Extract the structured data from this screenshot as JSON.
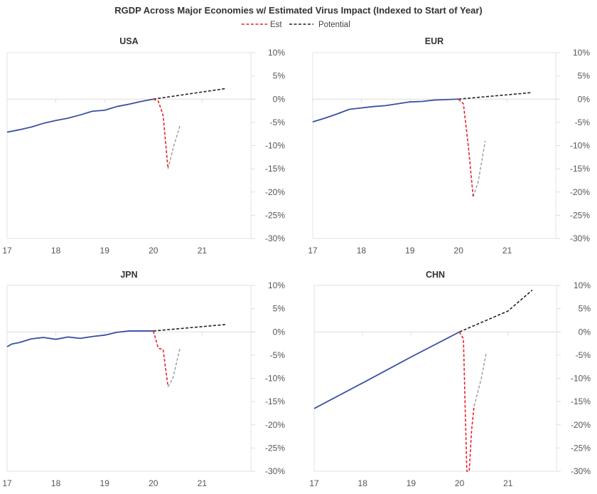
{
  "chart_data": {
    "title": "RGDP Across Major Economies w/ Estimated Virus Impact (Indexed to Start of Year)",
    "legend": [
      {
        "name": "Est",
        "color": "#e8212a",
        "dash": true
      },
      {
        "name": "Potential",
        "color": "#222222",
        "dash": true
      }
    ],
    "legend_placement": "top-center",
    "colors": {
      "actual": "#3a4fa3",
      "est": "#e8212a",
      "recovery": "#999999",
      "potential": "#222222"
    },
    "xlim": [
      17,
      22
    ],
    "ylim": [
      -30,
      10
    ],
    "x_ticks": [
      "17",
      "18",
      "19",
      "20",
      "21"
    ],
    "y_ticks": [
      "10%",
      "5%",
      "0%",
      "-5%",
      "-10%",
      "-15%",
      "-20%",
      "-25%",
      "-30%"
    ],
    "y_tick_values": [
      10,
      5,
      0,
      -5,
      -10,
      -15,
      -20,
      -25,
      -30
    ],
    "x_tick_values": [
      17,
      18,
      19,
      20,
      21
    ],
    "panels": [
      {
        "type": "line",
        "title": "USA",
        "actual": [
          [
            17,
            -7.1
          ],
          [
            17.25,
            -6.6
          ],
          [
            17.5,
            -6.0
          ],
          [
            17.75,
            -5.2
          ],
          [
            18,
            -4.6
          ],
          [
            18.25,
            -4.1
          ],
          [
            18.5,
            -3.4
          ],
          [
            18.75,
            -2.6
          ],
          [
            19,
            -2.4
          ],
          [
            19.25,
            -1.6
          ],
          [
            19.5,
            -1.1
          ],
          [
            19.75,
            -0.5
          ],
          [
            20,
            0
          ]
        ],
        "est": [
          [
            20,
            0
          ],
          [
            20.1,
            -0.4
          ],
          [
            20.2,
            -3.5
          ],
          [
            20.3,
            -15
          ]
        ],
        "recovery": [
          [
            20.3,
            -15
          ],
          [
            20.42,
            -10
          ],
          [
            20.55,
            -5.6
          ]
        ],
        "potential": [
          [
            20,
            0
          ],
          [
            21.5,
            2.3
          ]
        ]
      },
      {
        "type": "line",
        "title": "EUR",
        "actual": [
          [
            17,
            -4.9
          ],
          [
            17.25,
            -4.1
          ],
          [
            17.5,
            -3.2
          ],
          [
            17.75,
            -2.2
          ],
          [
            18,
            -1.9
          ],
          [
            18.25,
            -1.6
          ],
          [
            18.5,
            -1.4
          ],
          [
            18.75,
            -1.0
          ],
          [
            19,
            -0.6
          ],
          [
            19.25,
            -0.5
          ],
          [
            19.5,
            -0.2
          ],
          [
            19.75,
            -0.1
          ],
          [
            20,
            0
          ]
        ],
        "est": [
          [
            20,
            0
          ],
          [
            20.1,
            -1
          ],
          [
            20.2,
            -10
          ],
          [
            20.3,
            -21
          ]
        ],
        "recovery": [
          [
            20.3,
            -21
          ],
          [
            20.4,
            -18
          ],
          [
            20.55,
            -9
          ]
        ],
        "potential": [
          [
            20,
            0
          ],
          [
            21.5,
            1.4
          ]
        ]
      },
      {
        "type": "line",
        "title": "JPN",
        "actual": [
          [
            17,
            -3.2
          ],
          [
            17.1,
            -2.6
          ],
          [
            17.25,
            -2.3
          ],
          [
            17.5,
            -1.5
          ],
          [
            17.75,
            -1.2
          ],
          [
            18,
            -1.6
          ],
          [
            18.25,
            -1.1
          ],
          [
            18.5,
            -1.4
          ],
          [
            18.75,
            -1.0
          ],
          [
            19,
            -0.7
          ],
          [
            19.25,
            -0.1
          ],
          [
            19.5,
            0.2
          ],
          [
            19.75,
            0.2
          ],
          [
            20,
            0.2
          ]
        ],
        "est": [
          [
            20,
            0.2
          ],
          [
            20.1,
            -3.5
          ],
          [
            20.2,
            -3.8
          ],
          [
            20.3,
            -11.8
          ]
        ],
        "recovery": [
          [
            20.3,
            -11.8
          ],
          [
            20.4,
            -10
          ],
          [
            20.55,
            -3.3
          ]
        ],
        "potential": [
          [
            20,
            0.2
          ],
          [
            21.5,
            1.6
          ]
        ]
      },
      {
        "type": "line",
        "title": "CHN",
        "actual": [
          [
            17,
            -16.5
          ],
          [
            18,
            -11
          ],
          [
            19,
            -5.4
          ],
          [
            20,
            0
          ]
        ],
        "est": [
          [
            20,
            0
          ],
          [
            20.08,
            -1.5
          ],
          [
            20.15,
            -30
          ],
          [
            20.2,
            -30
          ],
          [
            20.25,
            -21
          ],
          [
            20.3,
            -16
          ]
        ],
        "recovery": [
          [
            20.3,
            -16
          ],
          [
            20.45,
            -10
          ],
          [
            20.55,
            -4.5
          ]
        ],
        "potential": [
          [
            20,
            0
          ],
          [
            21,
            4.5
          ],
          [
            21.5,
            9
          ]
        ]
      }
    ]
  }
}
